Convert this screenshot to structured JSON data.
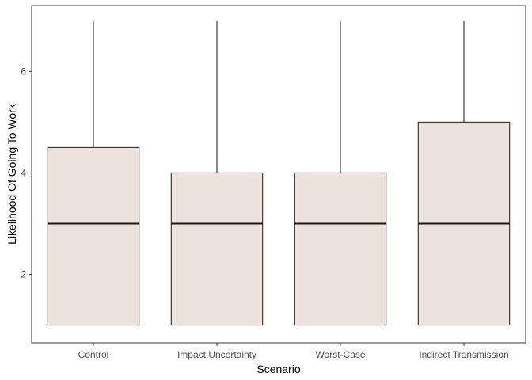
{
  "chart_data": {
    "type": "boxplot",
    "title": "",
    "xlabel": "Scenario",
    "ylabel": "Likelihood Of Going To Work",
    "categories": [
      "Control",
      "Impact Uncertainty",
      "Worst-Case",
      "Indirect Transmission"
    ],
    "boxes": [
      {
        "min": 1,
        "q1": 1,
        "median": 3,
        "q3": 4.5,
        "max": 7
      },
      {
        "min": 1,
        "q1": 1,
        "median": 3,
        "q3": 4,
        "max": 7
      },
      {
        "min": 1,
        "q1": 1,
        "median": 3,
        "q3": 4,
        "max": 7
      },
      {
        "min": 1,
        "q1": 1,
        "median": 3,
        "q3": 5,
        "max": 7
      }
    ],
    "yticks": [
      2,
      4,
      6
    ],
    "ylim": [
      0.65,
      7.3
    ],
    "grid": false,
    "box_fill": "#ede3de",
    "line_color": "#1a1a1a"
  }
}
